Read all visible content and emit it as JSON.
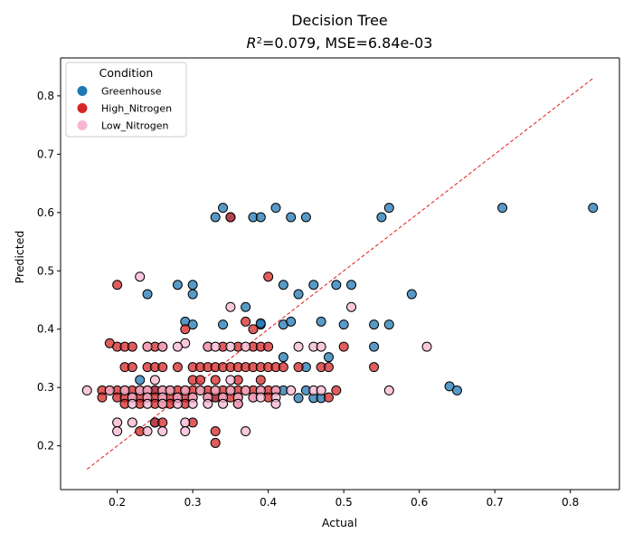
{
  "chart_data": {
    "type": "scatter",
    "title": "Decision Tree",
    "subtitle_prefix": "R",
    "subtitle_sup": "2",
    "subtitle_rest": "=0.079, MSE=6.84e-03",
    "xlabel": "Actual",
    "ylabel": "Predicted",
    "xlim": [
      0.125,
      0.865
    ],
    "ylim": [
      0.125,
      0.865
    ],
    "x_ticks": [
      0.2,
      0.3,
      0.4,
      0.5,
      0.6,
      0.7,
      0.8
    ],
    "x_tick_labels": [
      "0.2",
      "0.3",
      "0.4",
      "0.5",
      "0.6",
      "0.7",
      "0.8"
    ],
    "y_ticks": [
      0.2,
      0.3,
      0.4,
      0.5,
      0.6,
      0.7,
      0.8
    ],
    "y_tick_labels": [
      "0.2",
      "0.3",
      "0.4",
      "0.5",
      "0.6",
      "0.7",
      "0.8"
    ],
    "grid": false,
    "legend": {
      "title": "Condition",
      "position": "top-left"
    },
    "reference_line": {
      "x": [
        0.16,
        0.83
      ],
      "y": [
        0.16,
        0.83
      ],
      "color": "#e41a1c",
      "style": "dashed"
    },
    "series": [
      {
        "name": "Greenhouse",
        "color": "#1f77b4",
        "points": [
          [
            0.33,
            0.592
          ],
          [
            0.34,
            0.608
          ],
          [
            0.35,
            0.592
          ],
          [
            0.38,
            0.592
          ],
          [
            0.39,
            0.592
          ],
          [
            0.41,
            0.608
          ],
          [
            0.43,
            0.592
          ],
          [
            0.45,
            0.592
          ],
          [
            0.55,
            0.592
          ],
          [
            0.56,
            0.608
          ],
          [
            0.71,
            0.608
          ],
          [
            0.83,
            0.608
          ],
          [
            0.24,
            0.46
          ],
          [
            0.28,
            0.476
          ],
          [
            0.3,
            0.476
          ],
          [
            0.3,
            0.46
          ],
          [
            0.29,
            0.413
          ],
          [
            0.3,
            0.408
          ],
          [
            0.34,
            0.408
          ],
          [
            0.37,
            0.438
          ],
          [
            0.39,
            0.408
          ],
          [
            0.39,
            0.41
          ],
          [
            0.42,
            0.476
          ],
          [
            0.42,
            0.408
          ],
          [
            0.43,
            0.413
          ],
          [
            0.44,
            0.46
          ],
          [
            0.46,
            0.476
          ],
          [
            0.47,
            0.413
          ],
          [
            0.49,
            0.476
          ],
          [
            0.51,
            0.476
          ],
          [
            0.5,
            0.408
          ],
          [
            0.54,
            0.408
          ],
          [
            0.56,
            0.408
          ],
          [
            0.59,
            0.46
          ],
          [
            0.54,
            0.37
          ],
          [
            0.48,
            0.352
          ],
          [
            0.42,
            0.352
          ],
          [
            0.45,
            0.335
          ],
          [
            0.23,
            0.313
          ],
          [
            0.25,
            0.24
          ],
          [
            0.28,
            0.282
          ],
          [
            0.42,
            0.295
          ],
          [
            0.44,
            0.282
          ],
          [
            0.45,
            0.295
          ],
          [
            0.46,
            0.282
          ],
          [
            0.47,
            0.282
          ],
          [
            0.64,
            0.302
          ],
          [
            0.65,
            0.295
          ],
          [
            0.25,
            0.295
          ],
          [
            0.33,
            0.283
          ]
        ]
      },
      {
        "name": "High_Nitrogen",
        "color": "#d62728",
        "points": [
          [
            0.35,
            0.592
          ],
          [
            0.2,
            0.476
          ],
          [
            0.4,
            0.49
          ],
          [
            0.37,
            0.413
          ],
          [
            0.38,
            0.4
          ],
          [
            0.29,
            0.4
          ],
          [
            0.19,
            0.376
          ],
          [
            0.2,
            0.37
          ],
          [
            0.21,
            0.37
          ],
          [
            0.22,
            0.37
          ],
          [
            0.24,
            0.37
          ],
          [
            0.25,
            0.37
          ],
          [
            0.26,
            0.37
          ],
          [
            0.32,
            0.37
          ],
          [
            0.34,
            0.37
          ],
          [
            0.36,
            0.37
          ],
          [
            0.38,
            0.37
          ],
          [
            0.39,
            0.37
          ],
          [
            0.4,
            0.37
          ],
          [
            0.5,
            0.37
          ],
          [
            0.21,
            0.335
          ],
          [
            0.22,
            0.335
          ],
          [
            0.24,
            0.335
          ],
          [
            0.25,
            0.335
          ],
          [
            0.26,
            0.335
          ],
          [
            0.28,
            0.335
          ],
          [
            0.3,
            0.335
          ],
          [
            0.31,
            0.335
          ],
          [
            0.32,
            0.335
          ],
          [
            0.33,
            0.335
          ],
          [
            0.34,
            0.335
          ],
          [
            0.35,
            0.335
          ],
          [
            0.36,
            0.335
          ],
          [
            0.37,
            0.335
          ],
          [
            0.38,
            0.335
          ],
          [
            0.39,
            0.335
          ],
          [
            0.4,
            0.335
          ],
          [
            0.41,
            0.335
          ],
          [
            0.42,
            0.335
          ],
          [
            0.44,
            0.335
          ],
          [
            0.47,
            0.335
          ],
          [
            0.48,
            0.335
          ],
          [
            0.54,
            0.335
          ],
          [
            0.3,
            0.313
          ],
          [
            0.31,
            0.313
          ],
          [
            0.36,
            0.313
          ],
          [
            0.39,
            0.313
          ],
          [
            0.33,
            0.313
          ],
          [
            0.18,
            0.295
          ],
          [
            0.19,
            0.295
          ],
          [
            0.2,
            0.295
          ],
          [
            0.21,
            0.295
          ],
          [
            0.22,
            0.295
          ],
          [
            0.23,
            0.295
          ],
          [
            0.24,
            0.295
          ],
          [
            0.25,
            0.295
          ],
          [
            0.26,
            0.295
          ],
          [
            0.27,
            0.295
          ],
          [
            0.28,
            0.295
          ],
          [
            0.29,
            0.295
          ],
          [
            0.3,
            0.295
          ],
          [
            0.31,
            0.295
          ],
          [
            0.32,
            0.295
          ],
          [
            0.33,
            0.295
          ],
          [
            0.34,
            0.295
          ],
          [
            0.35,
            0.295
          ],
          [
            0.36,
            0.295
          ],
          [
            0.37,
            0.295
          ],
          [
            0.38,
            0.295
          ],
          [
            0.39,
            0.295
          ],
          [
            0.4,
            0.295
          ],
          [
            0.41,
            0.295
          ],
          [
            0.49,
            0.295
          ],
          [
            0.18,
            0.283
          ],
          [
            0.2,
            0.283
          ],
          [
            0.21,
            0.283
          ],
          [
            0.22,
            0.283
          ],
          [
            0.23,
            0.283
          ],
          [
            0.24,
            0.283
          ],
          [
            0.25,
            0.283
          ],
          [
            0.26,
            0.283
          ],
          [
            0.27,
            0.283
          ],
          [
            0.28,
            0.283
          ],
          [
            0.29,
            0.283
          ],
          [
            0.3,
            0.283
          ],
          [
            0.32,
            0.283
          ],
          [
            0.33,
            0.283
          ],
          [
            0.34,
            0.283
          ],
          [
            0.35,
            0.283
          ],
          [
            0.36,
            0.283
          ],
          [
            0.38,
            0.283
          ],
          [
            0.4,
            0.283
          ],
          [
            0.48,
            0.283
          ],
          [
            0.21,
            0.272
          ],
          [
            0.23,
            0.272
          ],
          [
            0.25,
            0.272
          ],
          [
            0.26,
            0.272
          ],
          [
            0.27,
            0.272
          ],
          [
            0.29,
            0.272
          ],
          [
            0.36,
            0.272
          ],
          [
            0.25,
            0.24
          ],
          [
            0.26,
            0.24
          ],
          [
            0.3,
            0.24
          ],
          [
            0.23,
            0.225
          ],
          [
            0.33,
            0.225
          ],
          [
            0.33,
            0.205
          ]
        ]
      },
      {
        "name": "Low_Nitrogen",
        "color": "#f7b6d2",
        "points": [
          [
            0.23,
            0.49
          ],
          [
            0.35,
            0.438
          ],
          [
            0.51,
            0.438
          ],
          [
            0.29,
            0.376
          ],
          [
            0.24,
            0.37
          ],
          [
            0.26,
            0.37
          ],
          [
            0.28,
            0.37
          ],
          [
            0.32,
            0.37
          ],
          [
            0.33,
            0.37
          ],
          [
            0.35,
            0.37
          ],
          [
            0.37,
            0.37
          ],
          [
            0.44,
            0.37
          ],
          [
            0.46,
            0.37
          ],
          [
            0.47,
            0.37
          ],
          [
            0.61,
            0.37
          ],
          [
            0.25,
            0.313
          ],
          [
            0.35,
            0.313
          ],
          [
            0.16,
            0.295
          ],
          [
            0.19,
            0.295
          ],
          [
            0.21,
            0.295
          ],
          [
            0.23,
            0.295
          ],
          [
            0.24,
            0.295
          ],
          [
            0.26,
            0.295
          ],
          [
            0.27,
            0.295
          ],
          [
            0.29,
            0.295
          ],
          [
            0.31,
            0.295
          ],
          [
            0.33,
            0.295
          ],
          [
            0.35,
            0.295
          ],
          [
            0.37,
            0.295
          ],
          [
            0.39,
            0.295
          ],
          [
            0.41,
            0.295
          ],
          [
            0.43,
            0.295
          ],
          [
            0.46,
            0.295
          ],
          [
            0.47,
            0.295
          ],
          [
            0.56,
            0.295
          ],
          [
            0.22,
            0.283
          ],
          [
            0.24,
            0.283
          ],
          [
            0.26,
            0.283
          ],
          [
            0.28,
            0.283
          ],
          [
            0.3,
            0.283
          ],
          [
            0.32,
            0.283
          ],
          [
            0.34,
            0.283
          ],
          [
            0.36,
            0.283
          ],
          [
            0.38,
            0.283
          ],
          [
            0.39,
            0.283
          ],
          [
            0.41,
            0.283
          ],
          [
            0.22,
            0.272
          ],
          [
            0.24,
            0.272
          ],
          [
            0.26,
            0.272
          ],
          [
            0.28,
            0.272
          ],
          [
            0.3,
            0.272
          ],
          [
            0.32,
            0.272
          ],
          [
            0.34,
            0.272
          ],
          [
            0.36,
            0.272
          ],
          [
            0.41,
            0.272
          ],
          [
            0.2,
            0.24
          ],
          [
            0.22,
            0.24
          ],
          [
            0.29,
            0.24
          ],
          [
            0.2,
            0.225
          ],
          [
            0.24,
            0.225
          ],
          [
            0.26,
            0.225
          ],
          [
            0.29,
            0.225
          ],
          [
            0.37,
            0.225
          ]
        ]
      }
    ]
  }
}
